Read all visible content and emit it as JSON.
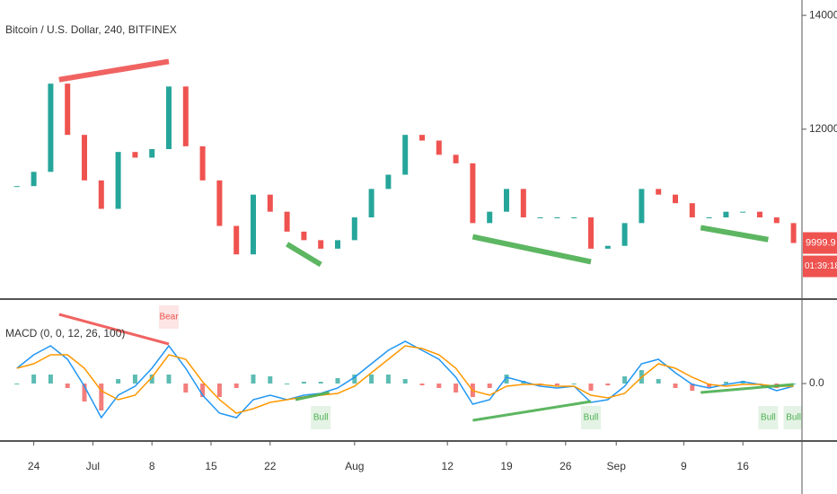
{
  "chart_data": [
    {
      "type": "candlestick",
      "title": "Bitcoin / U.S. Dollar, 240, BITFINEX",
      "x": [
        "Jun 22",
        "Jun 24",
        "Jun 26",
        "Jun 28",
        "Jun 30",
        "Jul 2",
        "Jul 4",
        "Jul 6",
        "Jul 8",
        "Jul 10",
        "Jul 12",
        "Jul 14",
        "Jul 16",
        "Jul 18",
        "Jul 20",
        "Jul 22",
        "Jul 24",
        "Jul 26",
        "Jul 28",
        "Jul 30",
        "Aug 1",
        "Aug 3",
        "Aug 5",
        "Aug 7",
        "Aug 9",
        "Aug 11",
        "Aug 13",
        "Aug 15",
        "Aug 17",
        "Aug 19",
        "Aug 21",
        "Aug 23",
        "Aug 25",
        "Aug 27",
        "Aug 29",
        "Aug 31",
        "Sep 2",
        "Sep 4",
        "Sep 6",
        "Sep 8",
        "Sep 10",
        "Sep 12",
        "Sep 14",
        "Sep 16",
        "Sep 18",
        "Sep 20",
        "Sep 22"
      ],
      "close": [
        11000,
        11250,
        12800,
        11900,
        11100,
        10600,
        11600,
        11500,
        11650,
        12750,
        11700,
        11100,
        10300,
        9800,
        10850,
        10550,
        10200,
        10050,
        9900,
        10050,
        10450,
        10950,
        11200,
        11900,
        11800,
        11550,
        11400,
        10350,
        10550,
        10950,
        10450,
        10450,
        10450,
        10450,
        9900,
        9950,
        10350,
        10950,
        10850,
        10700,
        10450,
        10450,
        10550,
        10550,
        10450,
        10350,
        9999.9
      ],
      "up_color": "#26a69a",
      "down_color": "#ef5350",
      "xlim": [
        "Jun 20",
        "Sep 23"
      ],
      "ylim": [
        9030,
        14270
      ],
      "yticks": [
        {
          "value": 14000,
          "label": "14000.0"
        },
        {
          "value": 12000,
          "label": "12000.0"
        }
      ],
      "last_price": 9999.9,
      "countdown": "01:39:18",
      "divergences": [
        {
          "from": "Jun 27",
          "to": "Jul 10",
          "start": 12870,
          "end": 13190,
          "color": "#ef5350"
        },
        {
          "from": "Jul 24",
          "to": "Jul 28",
          "start": 9980,
          "end": 9620,
          "color": "#4caf50"
        },
        {
          "from": "Aug 15",
          "to": "Aug 29",
          "start": 10110,
          "end": 9670,
          "color": "#4caf50"
        },
        {
          "from": "Sep 11",
          "to": "Sep 19",
          "start": 10270,
          "end": 10060,
          "color": "#4caf50"
        }
      ]
    },
    {
      "type": "macd",
      "title": "MACD (0, 0, 12, 26, 100)",
      "x": [
        "Jun 22",
        "Jun 24",
        "Jun 26",
        "Jun 28",
        "Jun 30",
        "Jul 2",
        "Jul 4",
        "Jul 6",
        "Jul 8",
        "Jul 10",
        "Jul 12",
        "Jul 14",
        "Jul 16",
        "Jul 18",
        "Jul 20",
        "Jul 22",
        "Jul 24",
        "Jul 26",
        "Jul 28",
        "Jul 30",
        "Aug 1",
        "Aug 3",
        "Aug 5",
        "Aug 7",
        "Aug 9",
        "Aug 11",
        "Aug 13",
        "Aug 15",
        "Aug 17",
        "Aug 19",
        "Aug 21",
        "Aug 23",
        "Aug 25",
        "Aug 27",
        "Aug 29",
        "Aug 31",
        "Sep 2",
        "Sep 4",
        "Sep 6",
        "Sep 8",
        "Sep 10",
        "Sep 12",
        "Sep 14",
        "Sep 16",
        "Sep 18",
        "Sep 20",
        "Sep 22"
      ],
      "series": [
        {
          "color": "#2196f3",
          "values": [
            170,
            320,
            420,
            270,
            -30,
            -380,
            -130,
            -30,
            170,
            420,
            170,
            -130,
            -330,
            -380,
            -180,
            -130,
            -180,
            -130,
            -110,
            -50,
            70,
            220,
            370,
            470,
            370,
            270,
            70,
            -230,
            -180,
            70,
            20,
            -30,
            -50,
            -30,
            -210,
            -180,
            -30,
            220,
            270,
            120,
            -10,
            -50,
            -10,
            20,
            -10,
            -80,
            -30
          ]
        },
        {
          "color": "#ff9800",
          "values": [
            170,
            220,
            320,
            320,
            170,
            -80,
            -180,
            -130,
            70,
            320,
            270,
            20,
            -180,
            -330,
            -280,
            -210,
            -180,
            -150,
            -130,
            -110,
            -30,
            120,
            270,
            420,
            390,
            320,
            170,
            -80,
            -130,
            -30,
            -10,
            -10,
            -30,
            -30,
            -130,
            -160,
            -110,
            70,
            220,
            170,
            70,
            -10,
            -30,
            -10,
            -10,
            -30,
            -30
          ]
        }
      ],
      "histogram": {
        "up_color": "#26a69a",
        "down_color": "#ef5350",
        "values": [
          0,
          100,
          100,
          -50,
          -200,
          -300,
          50,
          100,
          100,
          100,
          -100,
          -150,
          -150,
          -50,
          100,
          80,
          0,
          20,
          20,
          60,
          100,
          100,
          100,
          50,
          -20,
          -50,
          -100,
          -150,
          -50,
          100,
          30,
          -20,
          -20,
          0,
          -80,
          -20,
          80,
          150,
          50,
          -50,
          -80,
          -40,
          20,
          30,
          0,
          -50,
          0
        ]
      },
      "xlim": [
        "Jun 20",
        "Sep 23"
      ],
      "ylim": [
        -630,
        920
      ],
      "yticks": [
        {
          "value": 0,
          "label": "0.0"
        }
      ],
      "xticks": [
        {
          "value": "Jun 24",
          "label": "24"
        },
        {
          "value": "Jul 1",
          "label": "Jul"
        },
        {
          "value": "Jul 8",
          "label": "8"
        },
        {
          "value": "Jul 15",
          "label": "15"
        },
        {
          "value": "Jul 22",
          "label": "22"
        },
        {
          "value": "Aug 1",
          "label": "Aug"
        },
        {
          "value": "Aug 12",
          "label": "12"
        },
        {
          "value": "Aug 19",
          "label": "19"
        },
        {
          "value": "Aug 26",
          "label": "26"
        },
        {
          "value": "Sep 1",
          "label": "Sep"
        },
        {
          "value": "Sep 9",
          "label": "9"
        },
        {
          "value": "Sep 16",
          "label": "16"
        }
      ],
      "divergences": [
        {
          "from": "Jun 27",
          "to": "Jul 10",
          "start": 770,
          "end": 440,
          "color": "#ef5350"
        },
        {
          "from": "Jul 25",
          "to": "Jul 29",
          "start": -180,
          "end": -100,
          "color": "#4caf50"
        },
        {
          "from": "Aug 15",
          "to": "Aug 29",
          "start": -410,
          "end": -200,
          "color": "#4caf50"
        },
        {
          "from": "Sep 11",
          "to": "Sep 22",
          "start": -100,
          "end": -10,
          "color": "#4caf50"
        }
      ],
      "signals": [
        {
          "date": "Jul 10",
          "text": "Bear",
          "color": "#ef5350"
        },
        {
          "date": "Jul 28",
          "text": "Bull",
          "color": "#4caf50"
        },
        {
          "date": "Aug 29",
          "text": "Bull",
          "color": "#4caf50"
        },
        {
          "date": "Sep 19",
          "text": "Bull",
          "color": "#4caf50"
        },
        {
          "date": "Sep 22",
          "text": "Bull",
          "color": "#4caf50"
        }
      ]
    }
  ]
}
